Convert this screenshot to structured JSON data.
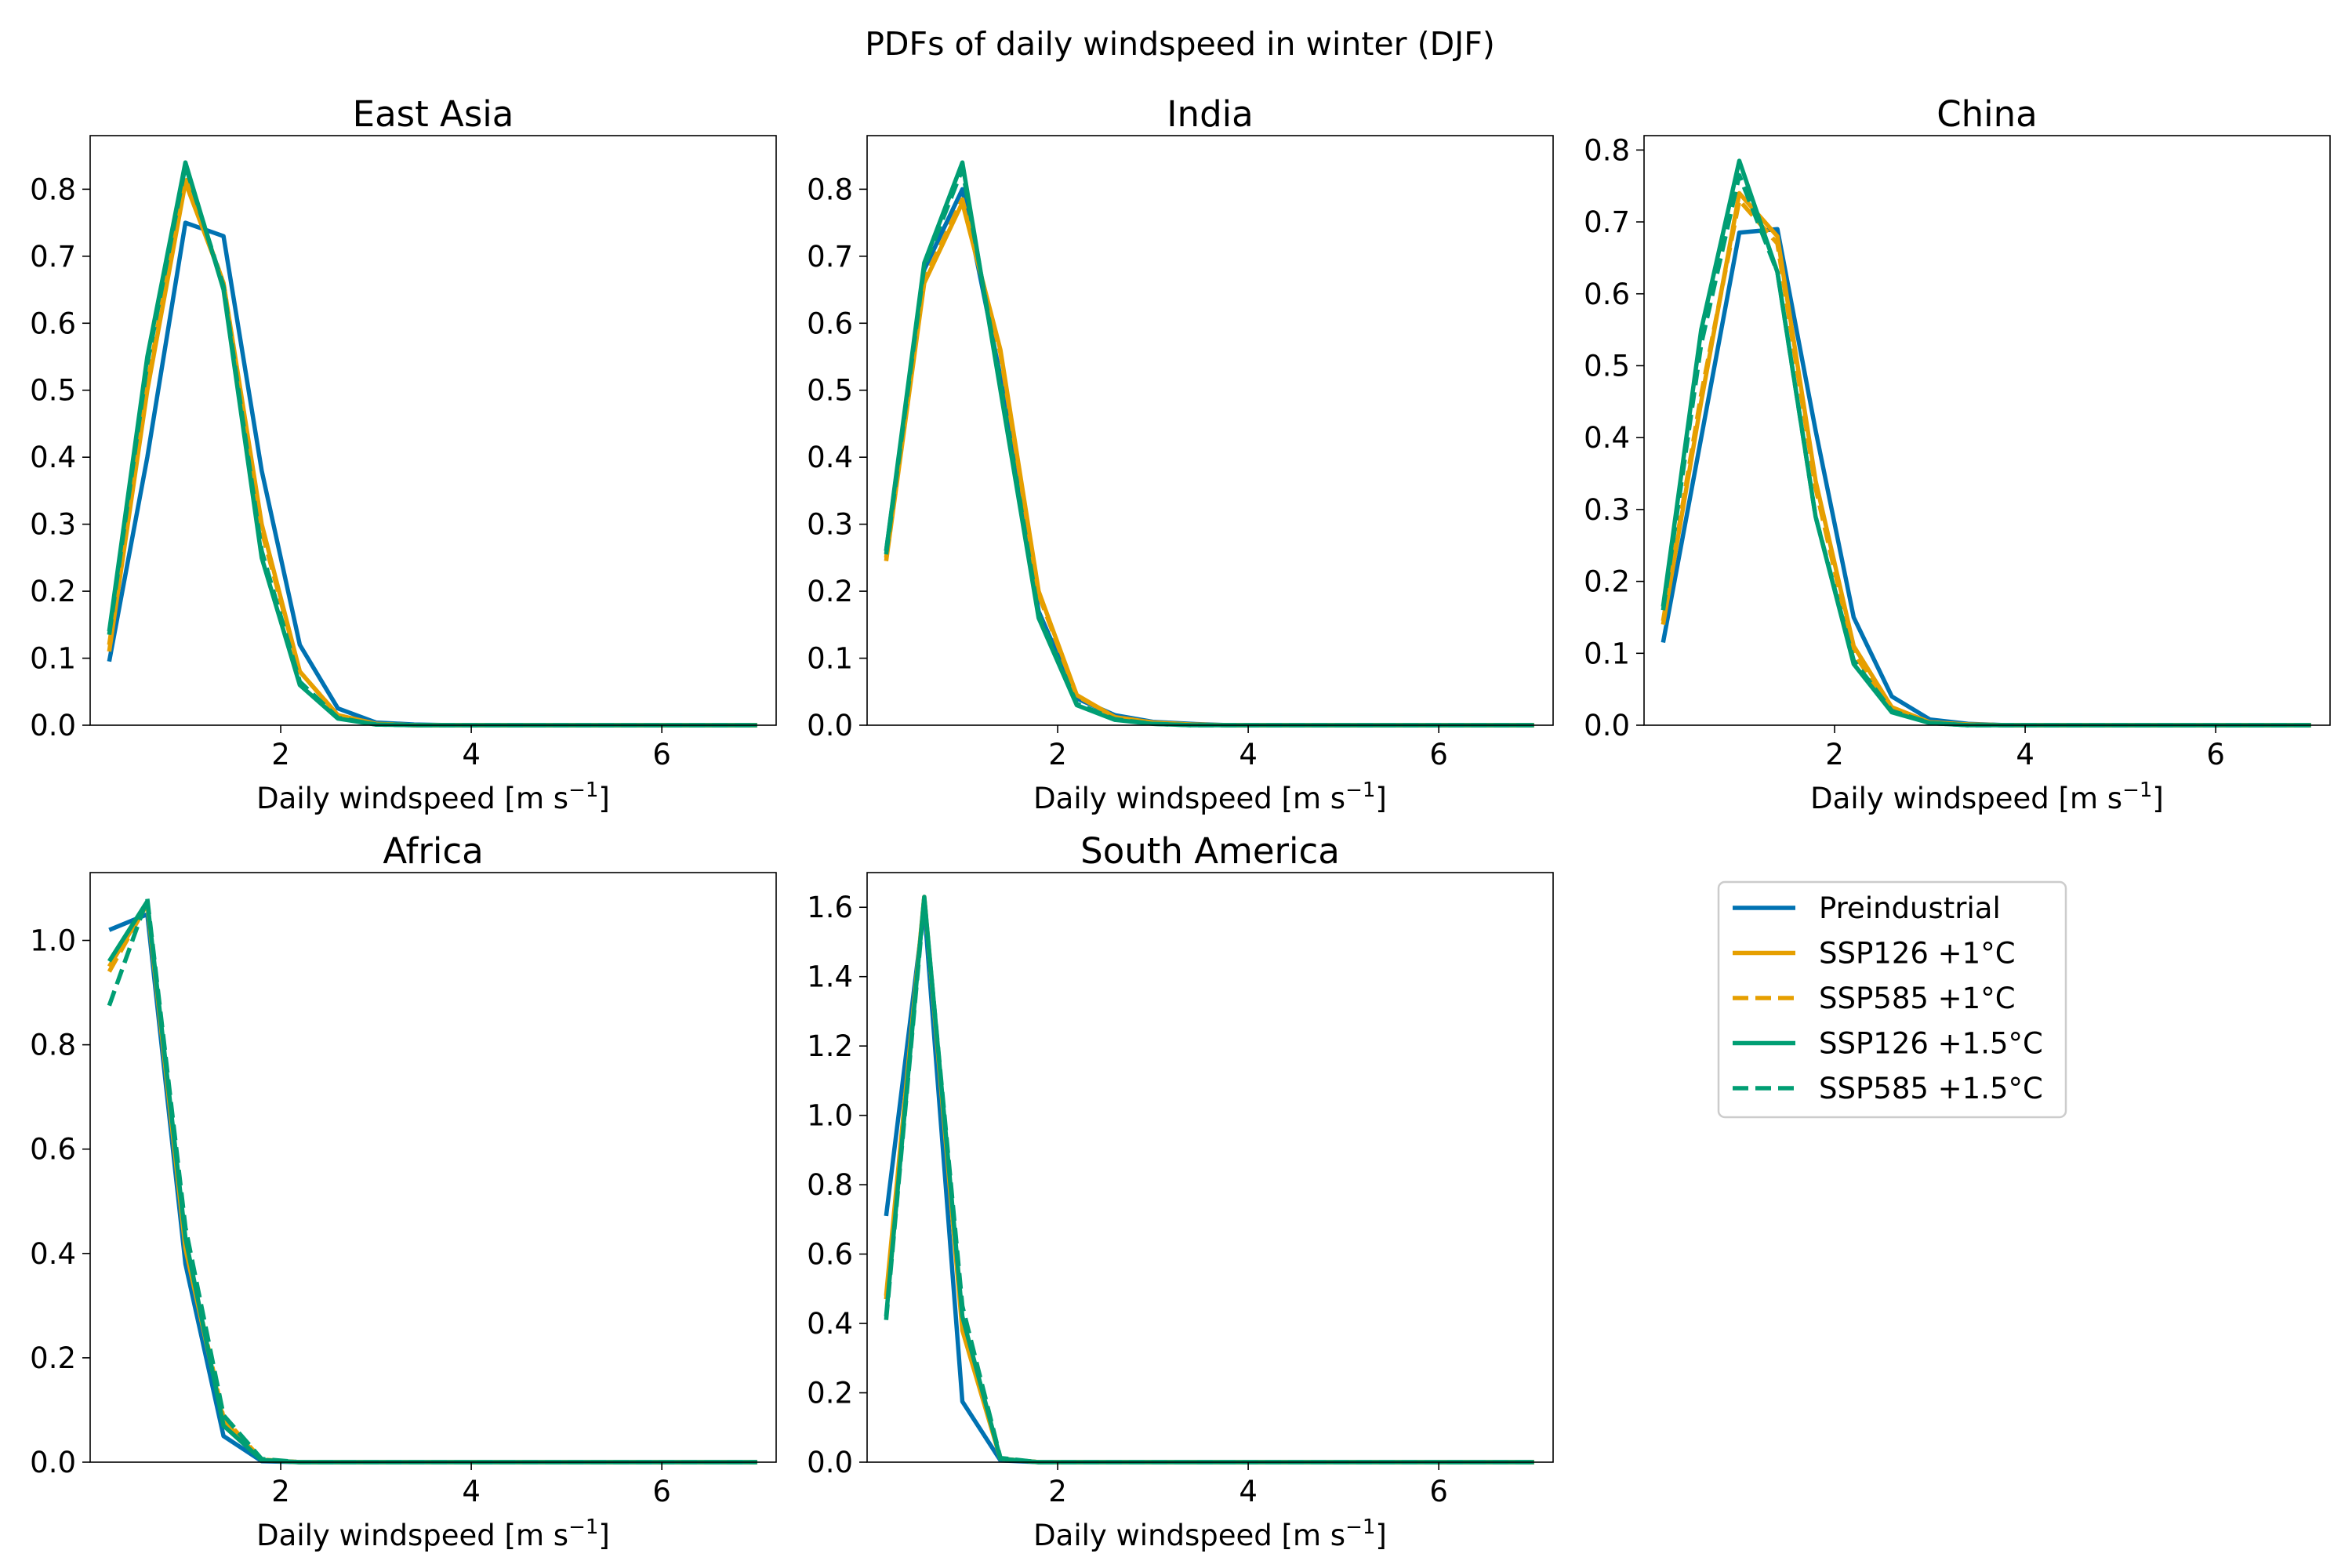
{
  "figure_title": "PDFs of daily windspeed in winter (DJF)",
  "legend": {
    "placement": "right of bottom row, third column slot",
    "entries": [
      {
        "label": "Preindustrial",
        "color": "#0072b2",
        "style": "solid"
      },
      {
        "label": "SSP126 +1°C",
        "color": "#e69f00",
        "style": "solid"
      },
      {
        "label": "SSP585 +1°C",
        "color": "#e69f00",
        "style": "dashed"
      },
      {
        "label": "SSP126 +1.5°C",
        "color": "#009e73",
        "style": "solid"
      },
      {
        "label": "SSP585 +1.5°C",
        "color": "#009e73",
        "style": "dashed"
      }
    ]
  },
  "chart_data": [
    {
      "type": "line",
      "title": "East Asia",
      "xlabel_main": "Daily windspeed [m s",
      "xlabel_sup": "−1",
      "xlabel_end": "]",
      "ylabel": "",
      "xlim": [
        0,
        7.2
      ],
      "ylim": [
        0,
        0.88
      ],
      "xticks": [
        2,
        4,
        6
      ],
      "yticks": [
        0.0,
        0.1,
        0.2,
        0.3,
        0.4,
        0.5,
        0.6,
        0.7,
        0.8
      ],
      "x": [
        0.2,
        0.6,
        1.0,
        1.4,
        1.8,
        2.2,
        2.6,
        3.0,
        3.4,
        3.8,
        4.2,
        4.6,
        5.0,
        5.4,
        5.8,
        6.2,
        6.6,
        7.0
      ],
      "series": [
        {
          "name": "Preindustrial",
          "values": [
            0.095,
            0.4,
            0.75,
            0.73,
            0.38,
            0.12,
            0.025,
            0.004,
            0.001,
            0,
            0,
            0,
            0,
            0,
            0,
            0,
            0,
            0
          ]
        },
        {
          "name": "SSP126 +1°C",
          "values": [
            0.11,
            0.5,
            0.81,
            0.66,
            0.3,
            0.08,
            0.015,
            0.002,
            0,
            0,
            0,
            0,
            0,
            0,
            0,
            0,
            0,
            0
          ]
        },
        {
          "name": "SSP585 +1°C",
          "values": [
            0.12,
            0.51,
            0.82,
            0.66,
            0.29,
            0.08,
            0.015,
            0.002,
            0,
            0,
            0,
            0,
            0,
            0,
            0,
            0,
            0,
            0
          ]
        },
        {
          "name": "SSP126 +1.5°C",
          "values": [
            0.14,
            0.55,
            0.84,
            0.65,
            0.25,
            0.06,
            0.01,
            0.001,
            0,
            0,
            0,
            0,
            0,
            0,
            0,
            0,
            0,
            0
          ]
        },
        {
          "name": "SSP585 +1.5°C",
          "values": [
            0.135,
            0.54,
            0.835,
            0.655,
            0.26,
            0.065,
            0.011,
            0.001,
            0,
            0,
            0,
            0,
            0,
            0,
            0,
            0,
            0,
            0
          ]
        }
      ]
    },
    {
      "type": "line",
      "title": "India",
      "xlabel_main": "Daily windspeed [m s",
      "xlabel_sup": "−1",
      "xlabel_end": "]",
      "ylabel": "",
      "xlim": [
        0,
        7.2
      ],
      "ylim": [
        0,
        0.88
      ],
      "xticks": [
        2,
        4,
        6
      ],
      "yticks": [
        0.0,
        0.1,
        0.2,
        0.3,
        0.4,
        0.5,
        0.6,
        0.7,
        0.8
      ],
      "x": [
        0.2,
        0.6,
        1.0,
        1.4,
        1.8,
        2.2,
        2.6,
        3.0,
        3.4,
        3.8,
        4.2,
        4.6,
        5.0,
        5.4,
        5.8,
        6.2,
        6.6,
        7.0
      ],
      "series": [
        {
          "name": "Preindustrial",
          "values": [
            0.26,
            0.68,
            0.8,
            0.52,
            0.17,
            0.04,
            0.015,
            0.005,
            0.002,
            0,
            0,
            0,
            0,
            0,
            0,
            0,
            0,
            0
          ]
        },
        {
          "name": "SSP126 +1°C",
          "values": [
            0.245,
            0.66,
            0.78,
            0.56,
            0.2,
            0.045,
            0.012,
            0.004,
            0.001,
            0,
            0,
            0,
            0,
            0,
            0,
            0,
            0,
            0
          ]
        },
        {
          "name": "SSP585 +1°C",
          "values": [
            0.25,
            0.665,
            0.785,
            0.555,
            0.195,
            0.044,
            0.012,
            0.004,
            0.001,
            0,
            0,
            0,
            0,
            0,
            0,
            0,
            0,
            0
          ]
        },
        {
          "name": "SSP126 +1.5°C",
          "values": [
            0.26,
            0.69,
            0.84,
            0.5,
            0.16,
            0.03,
            0.008,
            0.002,
            0,
            0,
            0,
            0,
            0,
            0,
            0,
            0,
            0,
            0
          ]
        },
        {
          "name": "SSP585 +1.5°C",
          "values": [
            0.255,
            0.685,
            0.83,
            0.51,
            0.165,
            0.032,
            0.009,
            0.002,
            0,
            0,
            0,
            0,
            0,
            0,
            0,
            0,
            0,
            0
          ]
        }
      ]
    },
    {
      "type": "line",
      "title": "China",
      "xlabel_main": "Daily windspeed [m s",
      "xlabel_sup": "−1",
      "xlabel_end": "]",
      "ylabel": "",
      "xlim": [
        0,
        7.2
      ],
      "ylim": [
        0,
        0.82
      ],
      "xticks": [
        2,
        4,
        6
      ],
      "yticks": [
        0.0,
        0.1,
        0.2,
        0.3,
        0.4,
        0.5,
        0.6,
        0.7,
        0.8
      ],
      "x": [
        0.2,
        0.6,
        1.0,
        1.4,
        1.8,
        2.2,
        2.6,
        3.0,
        3.4,
        3.8,
        4.2,
        4.6,
        5.0,
        5.4,
        5.8,
        6.2,
        6.6,
        7.0
      ],
      "series": [
        {
          "name": "Preindustrial",
          "values": [
            0.115,
            0.4,
            0.685,
            0.69,
            0.41,
            0.15,
            0.04,
            0.008,
            0.002,
            0,
            0,
            0,
            0,
            0,
            0,
            0,
            0,
            0
          ]
        },
        {
          "name": "SSP126 +1°C",
          "values": [
            0.14,
            0.45,
            0.74,
            0.68,
            0.34,
            0.11,
            0.025,
            0.004,
            0.001,
            0,
            0,
            0,
            0,
            0,
            0,
            0,
            0,
            0
          ]
        },
        {
          "name": "SSP585 +1°C",
          "values": [
            0.145,
            0.46,
            0.73,
            0.67,
            0.33,
            0.1,
            0.022,
            0.003,
            0.001,
            0,
            0,
            0,
            0,
            0,
            0,
            0,
            0,
            0
          ]
        },
        {
          "name": "SSP126 +1.5°C",
          "values": [
            0.165,
            0.55,
            0.785,
            0.63,
            0.29,
            0.085,
            0.018,
            0.003,
            0,
            0,
            0,
            0,
            0,
            0,
            0,
            0,
            0,
            0
          ]
        },
        {
          "name": "SSP585 +1.5°C",
          "values": [
            0.16,
            0.53,
            0.765,
            0.63,
            0.29,
            0.09,
            0.02,
            0.003,
            0,
            0,
            0,
            0,
            0,
            0,
            0,
            0,
            0,
            0
          ]
        }
      ]
    },
    {
      "type": "line",
      "title": "Africa",
      "xlabel_main": "Daily windspeed [m s",
      "xlabel_sup": "−1",
      "xlabel_end": "]",
      "ylabel": "",
      "xlim": [
        0,
        7.2
      ],
      "ylim": [
        0,
        1.13
      ],
      "xticks": [
        2,
        4,
        6
      ],
      "yticks": [
        0.0,
        0.2,
        0.4,
        0.6,
        0.8,
        1.0
      ],
      "x": [
        0.2,
        0.6,
        1.0,
        1.4,
        1.8,
        2.2,
        2.6,
        3.0,
        3.4,
        3.8,
        4.2,
        4.6,
        5.0,
        5.4,
        5.8,
        6.2,
        6.6,
        7.0
      ],
      "series": [
        {
          "name": "Preindustrial",
          "values": [
            1.02,
            1.05,
            0.38,
            0.05,
            0.002,
            0,
            0,
            0,
            0,
            0,
            0,
            0,
            0,
            0,
            0,
            0,
            0,
            0
          ]
        },
        {
          "name": "SSP126 +1°C",
          "values": [
            0.95,
            1.07,
            0.41,
            0.08,
            0.004,
            0,
            0,
            0,
            0,
            0,
            0,
            0,
            0,
            0,
            0,
            0,
            0,
            0
          ]
        },
        {
          "name": "SSP585 +1°C",
          "values": [
            0.94,
            1.07,
            0.42,
            0.085,
            0.005,
            0,
            0,
            0,
            0,
            0,
            0,
            0,
            0,
            0,
            0,
            0,
            0,
            0
          ]
        },
        {
          "name": "SSP126 +1.5°C",
          "values": [
            0.96,
            1.075,
            0.43,
            0.07,
            0.004,
            0,
            0,
            0,
            0,
            0,
            0,
            0,
            0,
            0,
            0,
            0,
            0,
            0
          ]
        },
        {
          "name": "SSP585 +1.5°C",
          "values": [
            0.875,
            1.08,
            0.45,
            0.09,
            0.006,
            0,
            0,
            0,
            0,
            0,
            0,
            0,
            0,
            0,
            0,
            0,
            0,
            0
          ]
        }
      ]
    },
    {
      "type": "line",
      "title": "South America",
      "xlabel_main": "Daily windspeed [m s",
      "xlabel_sup": "−1",
      "xlabel_end": "]",
      "ylabel": "",
      "xlim": [
        0,
        7.2
      ],
      "ylim": [
        0,
        1.7
      ],
      "xticks": [
        2,
        4,
        6
      ],
      "yticks": [
        0.0,
        0.2,
        0.4,
        0.6,
        0.8,
        1.0,
        1.2,
        1.4,
        1.6
      ],
      "x": [
        0.2,
        0.6,
        1.0,
        1.4,
        1.8,
        2.2,
        2.6,
        3.0,
        3.4,
        3.8,
        4.2,
        4.6,
        5.0,
        5.4,
        5.8,
        6.2,
        6.6,
        7.0
      ],
      "series": [
        {
          "name": "Preindustrial",
          "values": [
            0.71,
            1.6,
            0.175,
            0.005,
            0,
            0,
            0,
            0,
            0,
            0,
            0,
            0,
            0,
            0,
            0,
            0,
            0,
            0
          ]
        },
        {
          "name": "SSP126 +1°C",
          "values": [
            0.48,
            1.63,
            0.38,
            0.01,
            0,
            0,
            0,
            0,
            0,
            0,
            0,
            0,
            0,
            0,
            0,
            0,
            0,
            0
          ]
        },
        {
          "name": "SSP585 +1°C",
          "values": [
            0.47,
            1.63,
            0.4,
            0.01,
            0,
            0,
            0,
            0,
            0,
            0,
            0,
            0,
            0,
            0,
            0,
            0,
            0,
            0
          ]
        },
        {
          "name": "SSP126 +1.5°C",
          "values": [
            0.42,
            1.63,
            0.42,
            0.01,
            0,
            0,
            0,
            0,
            0,
            0,
            0,
            0,
            0,
            0,
            0,
            0,
            0,
            0
          ]
        },
        {
          "name": "SSP585 +1.5°C",
          "values": [
            0.41,
            1.62,
            0.45,
            0.012,
            0,
            0,
            0,
            0,
            0,
            0,
            0,
            0,
            0,
            0,
            0,
            0,
            0,
            0
          ]
        }
      ]
    }
  ]
}
